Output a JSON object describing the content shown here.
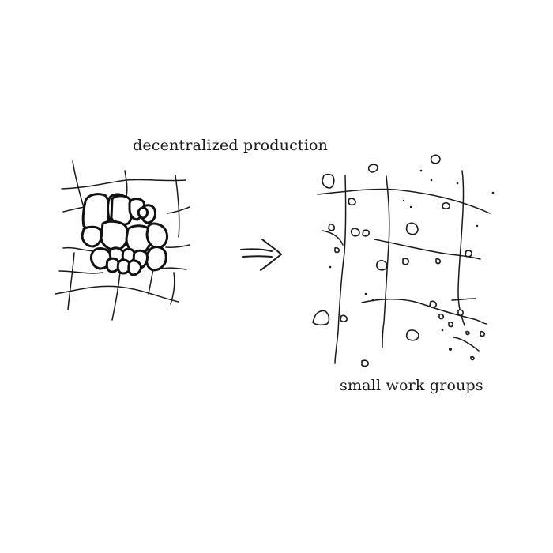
{
  "left_panel": {
    "caption": "decentralized production"
  },
  "right_panel": {
    "caption": "small work groups"
  }
}
